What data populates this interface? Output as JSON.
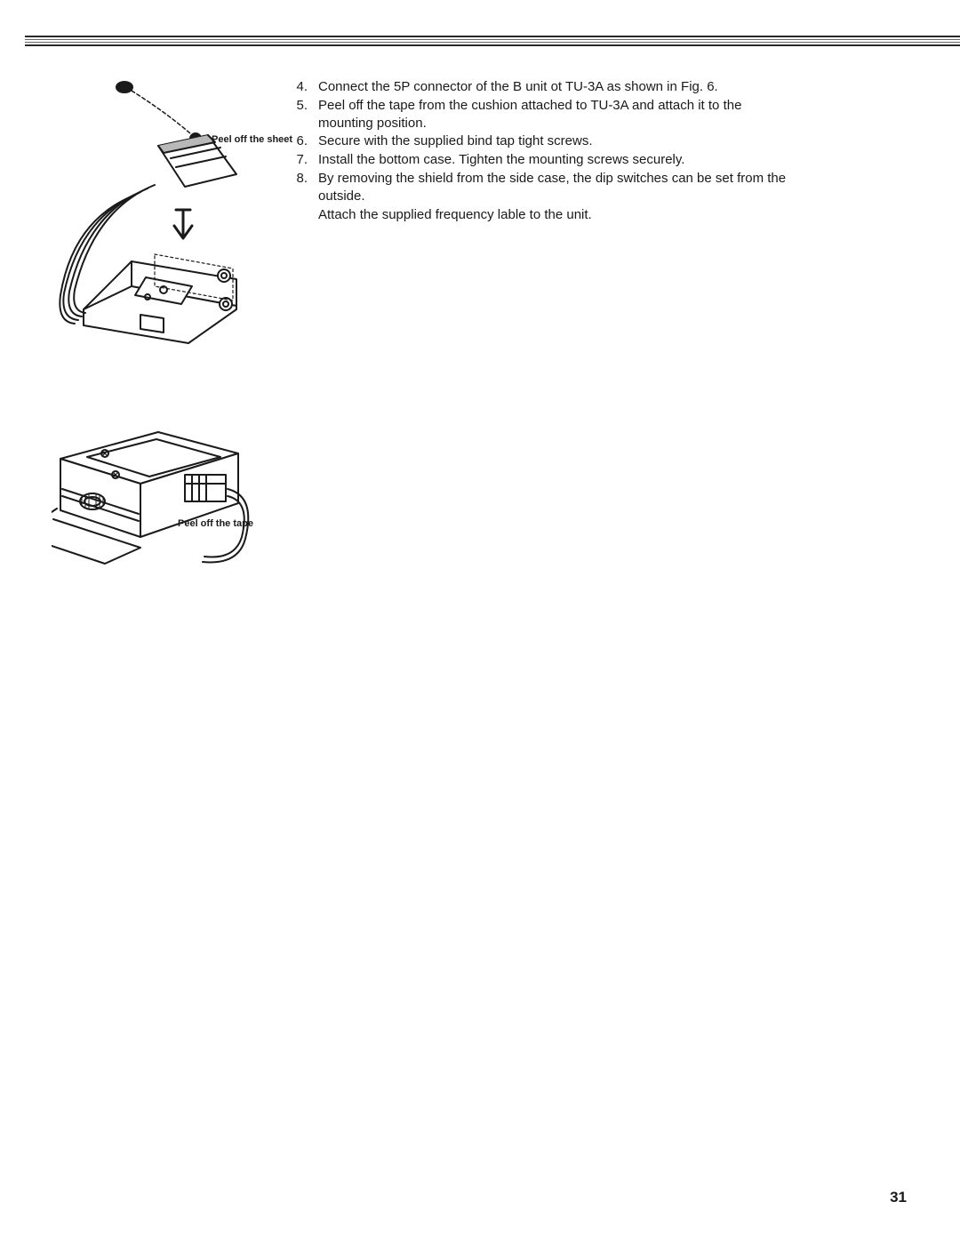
{
  "page": {
    "number": "31",
    "background_color": "#ffffff",
    "text_color": "#1a1a1a",
    "body_fontsize": 15,
    "label_fontsize": 11
  },
  "figure_top": {
    "callout_label": "Peel off the sheet"
  },
  "figure_bottom": {
    "callout_label": "Peel off the tape"
  },
  "instructions": {
    "start_number": 4,
    "items": [
      {
        "n": "4.",
        "text": "Connect the 5P connector of the B unit ot TU-3A as shown in Fig. 6."
      },
      {
        "n": "5.",
        "text": "Peel off the tape from the cushion attached to TU-3A and attach it to the mounting position."
      },
      {
        "n": "6.",
        "text": "Secure with the supplied bind tap tight screws."
      },
      {
        "n": "7.",
        "text": "Install the bottom case. Tighten the mounting screws securely."
      },
      {
        "n": "8.",
        "text": "By removing the shield from the side case, the dip switches can be set from the outside."
      }
    ],
    "trailing_line": "Attach the supplied frequency lable to the unit."
  }
}
